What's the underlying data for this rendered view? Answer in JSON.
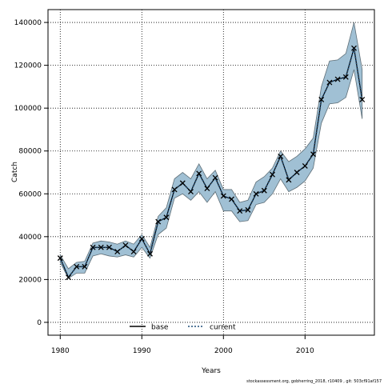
{
  "chart_data": {
    "type": "line",
    "title": "",
    "xlabel": "Years",
    "ylabel": "Catch",
    "xlim": [
      1978.5,
      2018.5
    ],
    "ylim": [
      -6000,
      146000
    ],
    "xticks": [
      "1980",
      "1990",
      "2000",
      "2010"
    ],
    "yticks": [
      "0",
      "20000",
      "40000",
      "60000",
      "80000",
      "100000",
      "120000",
      "140000"
    ],
    "grid": true,
    "legend_position": "bottom-center",
    "x": [
      1980,
      1981,
      1982,
      1983,
      1984,
      1985,
      1986,
      1987,
      1988,
      1989,
      1990,
      1991,
      1992,
      1993,
      1994,
      1995,
      1996,
      1997,
      1998,
      1999,
      2000,
      2001,
      2002,
      2003,
      2004,
      2005,
      2006,
      2007,
      2008,
      2009,
      2010,
      2011,
      2012,
      2013,
      2014,
      2015,
      2016,
      2017
    ],
    "series": [
      {
        "name": "base",
        "style": "solid",
        "color": "#000000",
        "values": [
          30000,
          21000,
          26000,
          26000,
          35000,
          35000,
          35000,
          33000,
          36000,
          33000,
          39000,
          32000,
          47000,
          49000,
          62000,
          65000,
          61000,
          69500,
          62500,
          67500,
          59000,
          57500,
          52000,
          52500,
          60000,
          61500,
          69000,
          77500,
          66500,
          70000,
          73000,
          78500,
          104000,
          112000,
          113500,
          114500,
          128000,
          104000
        ]
      },
      {
        "name": "current",
        "style": "dotted",
        "color": "#1f4e79",
        "values": [
          30000,
          21000,
          26000,
          26000,
          35000,
          35000,
          35000,
          33000,
          36000,
          33000,
          39000,
          32000,
          47000,
          49000,
          62000,
          65000,
          61000,
          69500,
          62500,
          67500,
          59000,
          57500,
          52000,
          52500,
          60000,
          61500,
          69000,
          77500,
          66500,
          70000,
          73000,
          78500,
          104000,
          112000,
          113500,
          114500,
          128000,
          104000
        ]
      }
    ],
    "band": {
      "color": "#a0c0d4",
      "lower": [
        28000,
        20500,
        23000,
        23000,
        31000,
        32000,
        31000,
        30500,
        31500,
        30500,
        35000,
        30000,
        41000,
        44000,
        58000,
        60000,
        57000,
        61000,
        56000,
        61000,
        52000,
        52000,
        47000,
        47500,
        55000,
        56000,
        60000,
        67000,
        61000,
        63000,
        66000,
        72000,
        93000,
        102000,
        102500,
        105000,
        118000,
        95000
      ],
      "upper": [
        31500,
        25000,
        28000,
        28500,
        37000,
        38000,
        37500,
        36500,
        38000,
        36500,
        41000,
        35000,
        49500,
        53500,
        67000,
        70000,
        67000,
        74000,
        67000,
        71000,
        62000,
        62000,
        56000,
        57000,
        65500,
        68000,
        72000,
        80000,
        75000,
        77500,
        81000,
        86000,
        110000,
        122000,
        122500,
        125500,
        140000,
        118000
      ]
    },
    "footer_text": "stockassessment.org, gobherring_2018, r10409 , git: 503cf91af157"
  }
}
